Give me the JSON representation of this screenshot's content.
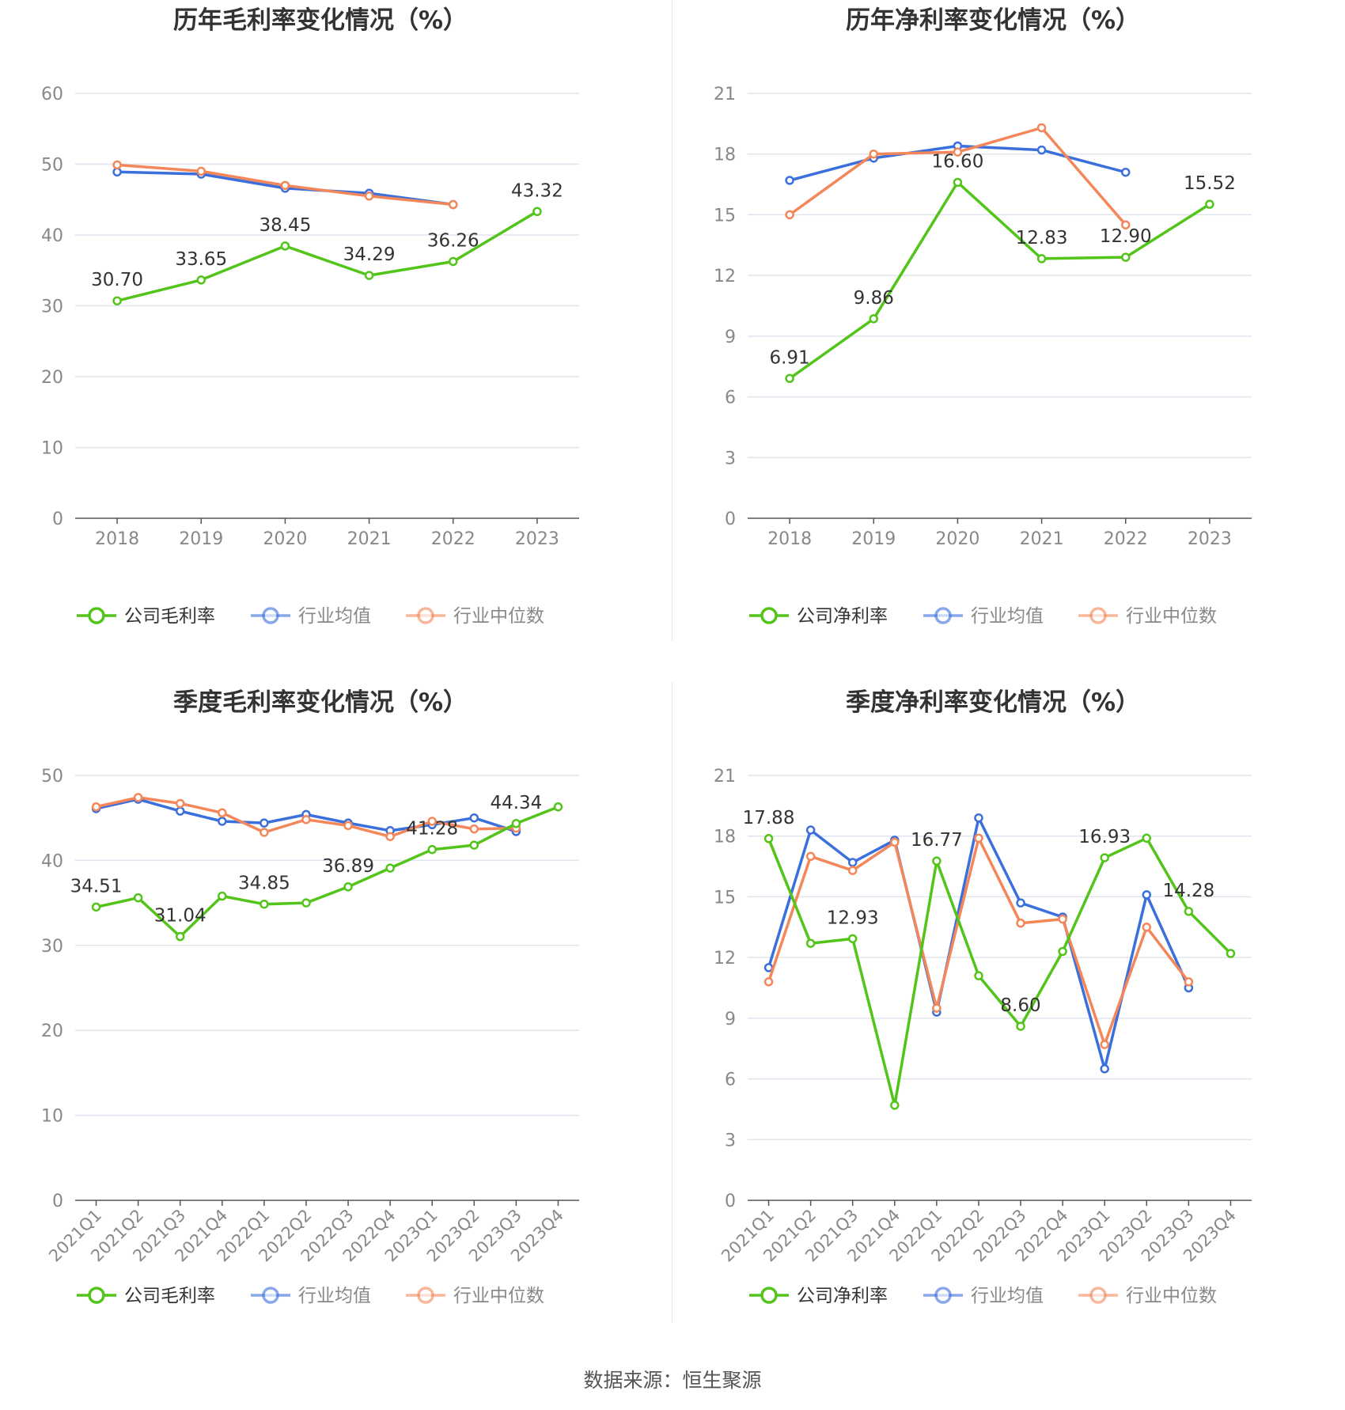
{
  "source_text": "数据来源：恒生聚源",
  "colors": {
    "company": "#52c41a",
    "avg": "#3b6fdb",
    "median": "#f4875a",
    "grid": "#e0e4ee",
    "axis": "#555555",
    "label": "#888888"
  },
  "chart_data": [
    {
      "type": "line",
      "title": "历年毛利率变化情况（%）",
      "categories": [
        "2018",
        "2019",
        "2020",
        "2021",
        "2022",
        "2023"
      ],
      "ylim": [
        0,
        60
      ],
      "yticks": [
        0,
        10,
        20,
        30,
        40,
        50,
        60
      ],
      "legend_position": "bottom",
      "series": [
        {
          "name": "公司毛利率",
          "color": "#52c41a",
          "values": [
            30.7,
            33.65,
            38.45,
            34.29,
            36.26,
            43.32
          ],
          "labels": [
            "30.70",
            "33.65",
            "38.45",
            "34.29",
            "36.26",
            "43.32"
          ]
        },
        {
          "name": "行业均值",
          "color": "#3b6fdb",
          "values": [
            48.9,
            48.6,
            46.6,
            45.9,
            44.3,
            null
          ]
        },
        {
          "name": "行业中位数",
          "color": "#f4875a",
          "values": [
            49.9,
            49.0,
            47.0,
            45.5,
            44.3,
            null
          ]
        }
      ]
    },
    {
      "type": "line",
      "title": "历年净利率变化情况（%）",
      "categories": [
        "2018",
        "2019",
        "2020",
        "2021",
        "2022",
        "2023"
      ],
      "ylim": [
        0,
        21
      ],
      "yticks": [
        0,
        3,
        6,
        9,
        12,
        15,
        18,
        21
      ],
      "legend_position": "bottom",
      "series": [
        {
          "name": "公司净利率",
          "color": "#52c41a",
          "values": [
            6.91,
            9.86,
            16.6,
            12.83,
            12.9,
            15.52
          ],
          "labels": [
            "6.91",
            "9.86",
            "16.60",
            "12.83",
            "12.90",
            "15.52"
          ]
        },
        {
          "name": "行业均值",
          "color": "#3b6fdb",
          "values": [
            16.7,
            17.8,
            18.4,
            18.2,
            17.1,
            null
          ]
        },
        {
          "name": "行业中位数",
          "color": "#f4875a",
          "values": [
            15.0,
            18.0,
            18.1,
            19.3,
            14.5,
            null
          ]
        }
      ]
    },
    {
      "type": "line",
      "title": "季度毛利率变化情况（%）",
      "categories": [
        "2021Q1",
        "2021Q2",
        "2021Q3",
        "2021Q4",
        "2022Q1",
        "2022Q2",
        "2022Q3",
        "2022Q4",
        "2023Q1",
        "2023Q2",
        "2023Q3",
        "2023Q4"
      ],
      "ylim": [
        0,
        50
      ],
      "yticks": [
        0,
        10,
        20,
        30,
        40,
        50
      ],
      "legend_position": "bottom",
      "series": [
        {
          "name": "公司毛利率",
          "color": "#52c41a",
          "values": [
            34.51,
            35.6,
            31.04,
            35.8,
            34.85,
            35.0,
            36.89,
            39.1,
            41.28,
            41.8,
            44.34,
            46.3
          ],
          "labels": [
            "34.51",
            "",
            "31.04",
            "",
            "34.85",
            "",
            "36.89",
            "",
            "41.28",
            "",
            "44.34",
            ""
          ]
        },
        {
          "name": "行业均值",
          "color": "#3b6fdb",
          "values": [
            46.1,
            47.2,
            45.8,
            44.6,
            44.4,
            45.4,
            44.4,
            43.5,
            44.2,
            45.0,
            43.4,
            null
          ]
        },
        {
          "name": "行业中位数",
          "color": "#f4875a",
          "values": [
            46.3,
            47.4,
            46.7,
            45.6,
            43.3,
            44.8,
            44.1,
            42.8,
            44.6,
            43.7,
            43.8,
            null
          ]
        }
      ]
    },
    {
      "type": "line",
      "title": "季度净利率变化情况（%）",
      "categories": [
        "2021Q1",
        "2021Q2",
        "2021Q3",
        "2021Q4",
        "2022Q1",
        "2022Q2",
        "2022Q3",
        "2022Q4",
        "2023Q1",
        "2023Q2",
        "2023Q3",
        "2023Q4"
      ],
      "ylim": [
        0,
        21
      ],
      "yticks": [
        0,
        3,
        6,
        9,
        12,
        15,
        18,
        21
      ],
      "legend_position": "bottom",
      "series": [
        {
          "name": "公司净利率",
          "color": "#52c41a",
          "values": [
            17.88,
            12.7,
            12.93,
            4.7,
            16.77,
            11.1,
            8.6,
            12.3,
            16.93,
            17.9,
            14.28,
            12.2
          ],
          "labels": [
            "17.88",
            "",
            "12.93",
            "",
            "16.77",
            "",
            "8.60",
            "",
            "16.93",
            "",
            "14.28",
            ""
          ]
        },
        {
          "name": "行业均值",
          "color": "#3b6fdb",
          "values": [
            11.5,
            18.3,
            16.7,
            17.8,
            9.3,
            18.9,
            14.7,
            14.0,
            6.5,
            15.1,
            10.5,
            null
          ]
        },
        {
          "name": "行业中位数",
          "color": "#f4875a",
          "values": [
            10.8,
            17.0,
            16.3,
            17.7,
            9.5,
            17.9,
            13.7,
            13.9,
            7.7,
            13.5,
            10.8,
            null
          ]
        }
      ]
    }
  ]
}
